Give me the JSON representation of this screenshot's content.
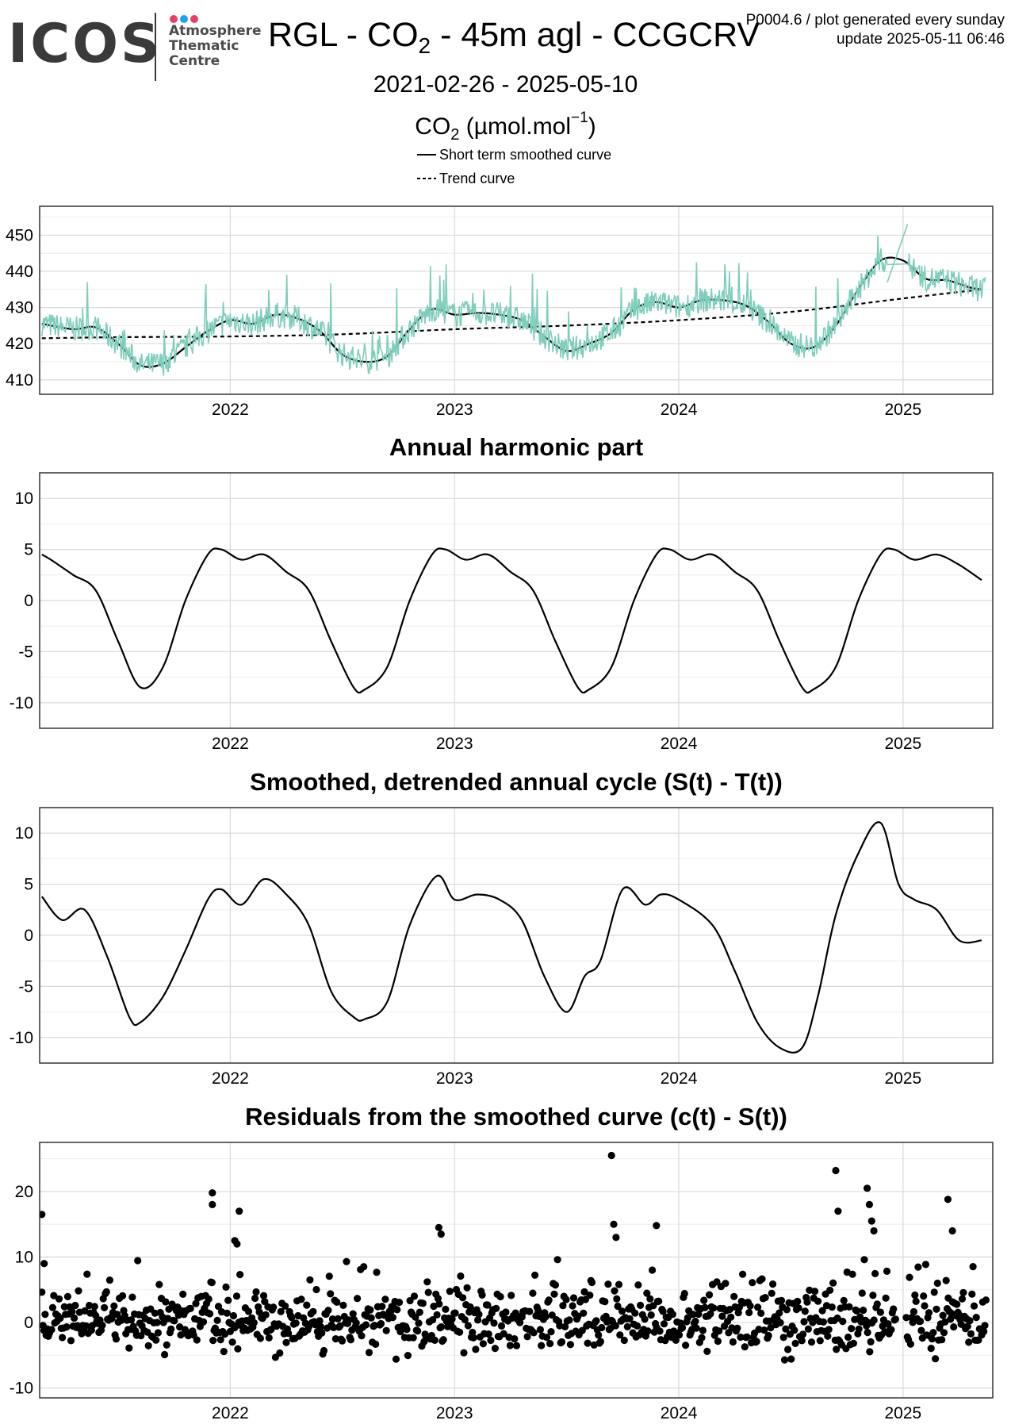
{
  "logo": {
    "wordmark": "ICOS",
    "lines": [
      "Atmosphere",
      "Thematic",
      "Centre"
    ],
    "dot_colors": [
      "#e63e6d",
      "#1da1f2",
      "#e63e6d"
    ]
  },
  "header": {
    "title_part1": "RGL - CO",
    "title_sub": "2",
    "title_part2": " - 45m agl - CCGCRV",
    "meta_line1": "P0004.6 / plot generated every sunday",
    "meta_line2": "update  2025-05-11 06:46",
    "date_range": "2021-02-26 - 2025-05-10",
    "unit_part1": "CO",
    "unit_sub": "2",
    "unit_part2": " (µmol.mol",
    "unit_sup": "−1",
    "unit_part3": ")"
  },
  "legend": {
    "short_term": "Short term smoothed curve",
    "trend": "Trend curve"
  },
  "colors": {
    "raw": "#7fcdbb",
    "line": "#000000",
    "grid_major": "#d9d9d9",
    "grid_minor": "#ededed",
    "frame": "#333333"
  },
  "chart_data": [
    {
      "type": "line",
      "title": "",
      "ylabel": "",
      "xlim": [
        2021.15,
        2025.4
      ],
      "ylim": [
        406,
        458
      ],
      "yticks": [
        410,
        420,
        430,
        440,
        450
      ],
      "xticks": [
        "2022",
        "2023",
        "2024",
        "2025"
      ],
      "series": [
        {
          "name": "Short term smoothed curve",
          "style": "solid",
          "x": [
            2021.16,
            2021.3,
            2021.4,
            2021.5,
            2021.6,
            2021.7,
            2021.8,
            2021.9,
            2022.0,
            2022.1,
            2022.2,
            2022.3,
            2022.4,
            2022.5,
            2022.6,
            2022.7,
            2022.8,
            2022.9,
            2023.0,
            2023.1,
            2023.2,
            2023.3,
            2023.4,
            2023.5,
            2023.6,
            2023.7,
            2023.8,
            2023.9,
            2024.0,
            2024.1,
            2024.2,
            2024.3,
            2024.4,
            2024.5,
            2024.6,
            2024.7,
            2024.8,
            2024.9,
            2025.0,
            2025.1,
            2025.2,
            2025.3,
            2025.35
          ],
          "y": [
            425.5,
            424.0,
            424.5,
            420.0,
            414.0,
            414.5,
            419.0,
            423.5,
            426.5,
            425.5,
            428.0,
            427.0,
            423.5,
            417.0,
            415.0,
            416.5,
            424.0,
            429.5,
            428.0,
            428.5,
            428.0,
            426.5,
            422.0,
            418.0,
            420.0,
            423.0,
            429.5,
            431.5,
            430.0,
            432.0,
            432.0,
            430.5,
            426.0,
            420.0,
            419.0,
            425.0,
            435.0,
            443.0,
            443.0,
            438.0,
            437.5,
            435.5,
            435.0
          ]
        },
        {
          "name": "Trend curve",
          "style": "dashed",
          "x": [
            2021.16,
            2021.5,
            2022.0,
            2022.5,
            2023.0,
            2023.5,
            2024.0,
            2024.5,
            2025.0,
            2025.35
          ],
          "y": [
            421.5,
            421.8,
            422.0,
            422.6,
            424.0,
            425.0,
            426.5,
            428.8,
            432.5,
            435.0
          ]
        },
        {
          "name": "",
          "style": "raw",
          "seed": 7
        }
      ]
    },
    {
      "type": "line",
      "title": "Annual harmonic part",
      "xlim": [
        2021.15,
        2025.4
      ],
      "ylim": [
        -12.5,
        12.5
      ],
      "yticks": [
        -10,
        -5,
        0,
        5,
        10
      ],
      "xticks": [
        "2022",
        "2023",
        "2024",
        "2025"
      ],
      "series": [
        {
          "name": "",
          "style": "solid",
          "x": [
            2021.16,
            2021.2,
            2021.3,
            2021.4,
            2021.5,
            2021.6,
            2021.7,
            2021.8,
            2021.9,
            2021.96,
            2022.05,
            2022.15,
            2022.25,
            2022.35,
            2022.45,
            2022.55,
            2022.6,
            2022.7,
            2022.8,
            2022.9,
            2022.96,
            2023.05,
            2023.15,
            2023.25,
            2023.35,
            2023.45,
            2023.55,
            2023.6,
            2023.7,
            2023.8,
            2023.9,
            2023.96,
            2024.05,
            2024.15,
            2024.25,
            2024.35,
            2024.45,
            2024.55,
            2024.6,
            2024.7,
            2024.8,
            2024.9,
            2024.96,
            2025.05,
            2025.15,
            2025.25,
            2025.35
          ],
          "y": [
            4.5,
            4.0,
            2.5,
            1.0,
            -4.0,
            -8.5,
            -6.5,
            0.0,
            4.5,
            5.0,
            4.0,
            4.5,
            2.8,
            1.0,
            -4.0,
            -8.5,
            -8.7,
            -6.5,
            0.0,
            4.5,
            5.0,
            4.0,
            4.5,
            2.8,
            1.0,
            -4.0,
            -8.5,
            -8.7,
            -6.5,
            0.0,
            4.5,
            5.0,
            4.0,
            4.5,
            2.8,
            1.0,
            -4.0,
            -8.5,
            -8.7,
            -6.5,
            0.0,
            4.5,
            5.0,
            4.0,
            4.5,
            3.5,
            2.0
          ]
        }
      ]
    },
    {
      "type": "line",
      "title": "Smoothed, detrended annual cycle (S(t) - T(t))",
      "xlim": [
        2021.15,
        2025.4
      ],
      "ylim": [
        -12.5,
        12.5
      ],
      "yticks": [
        -10,
        -5,
        0,
        5,
        10
      ],
      "xticks": [
        "2022",
        "2023",
        "2024",
        "2025"
      ],
      "series": [
        {
          "name": "",
          "style": "solid",
          "x": [
            2021.16,
            2021.25,
            2021.35,
            2021.45,
            2021.55,
            2021.6,
            2021.7,
            2021.8,
            2021.9,
            2021.96,
            2022.05,
            2022.15,
            2022.25,
            2022.35,
            2022.45,
            2022.55,
            2022.6,
            2022.7,
            2022.8,
            2022.92,
            2023.0,
            2023.1,
            2023.2,
            2023.3,
            2023.4,
            2023.5,
            2023.58,
            2023.65,
            2023.75,
            2023.85,
            2023.92,
            2024.0,
            2024.15,
            2024.25,
            2024.35,
            2024.45,
            2024.55,
            2024.62,
            2024.7,
            2024.8,
            2024.9,
            2024.98,
            2025.05,
            2025.15,
            2025.25,
            2025.35
          ],
          "y": [
            3.8,
            1.5,
            2.5,
            -2.0,
            -8.0,
            -8.5,
            -6.0,
            -1.5,
            3.5,
            4.5,
            3.0,
            5.5,
            4.0,
            1.0,
            -5.5,
            -8.0,
            -8.2,
            -6.5,
            1.0,
            5.8,
            3.5,
            4.0,
            3.5,
            1.5,
            -4.0,
            -7.5,
            -4.0,
            -2.5,
            4.5,
            3.0,
            4.0,
            3.5,
            1.0,
            -3.5,
            -8.5,
            -11.0,
            -11.0,
            -6.0,
            2.0,
            8.0,
            11.0,
            5.0,
            3.5,
            2.5,
            -0.5,
            -0.5
          ]
        }
      ]
    },
    {
      "type": "scatter",
      "title": "Residuals from the smoothed curve (c(t) - S(t))",
      "xlim": [
        2021.15,
        2025.4
      ],
      "ylim": [
        -11.5,
        27.5
      ],
      "yticks": [
        -10,
        0,
        10,
        20
      ],
      "xticks": [
        "2022",
        "2023",
        "2024",
        "2025"
      ],
      "series": [
        {
          "name": "",
          "style": "points",
          "seed": 11,
          "outliers_x": [
            2021.16,
            2021.17,
            2021.92,
            2021.92,
            2022.02,
            2022.03,
            2022.04,
            2022.93,
            2022.94,
            2023.7,
            2023.71,
            2023.72,
            2023.9,
            2024.7,
            2024.71,
            2024.84,
            2024.85,
            2024.86,
            2024.87,
            2025.2,
            2025.22
          ],
          "outliers_y": [
            16.5,
            9.0,
            19.8,
            18.0,
            12.5,
            12.0,
            17.0,
            14.5,
            13.5,
            25.5,
            15.0,
            13.0,
            14.8,
            23.2,
            17.0,
            20.5,
            18.0,
            15.5,
            14.0,
            18.8,
            14.0
          ]
        }
      ]
    }
  ]
}
